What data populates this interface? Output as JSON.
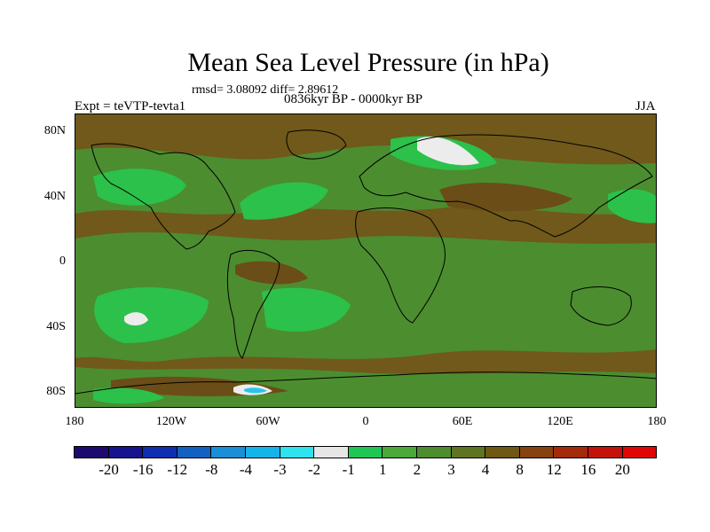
{
  "figure": {
    "title": "Mean Sea Level Pressure (in hPa)",
    "stats_line": "rmsd= 3.08092 diff= 2.89612",
    "experiment_label": "Expt = teVTP-tevta1",
    "period_label": "0836kyr BP - 0000kyr BP",
    "season_label": "JJA"
  },
  "axes": {
    "y_ticks": [
      "80N",
      "40N",
      "0",
      "40S",
      "80S"
    ],
    "x_ticks": [
      "180",
      "120W",
      "60W",
      "0",
      "60E",
      "120E",
      "180"
    ]
  },
  "colorbar": {
    "colors": [
      "#1c0a6e",
      "#16158f",
      "#0f2fb0",
      "#1260c2",
      "#1a8ed6",
      "#14b4e8",
      "#2ee2ee",
      "#e6e6e6",
      "#1fc653",
      "#4aa93a",
      "#4d8d2e",
      "#5e7420",
      "#6e5814",
      "#86430f",
      "#a42a0c",
      "#c4110a",
      "#e00606"
    ],
    "labels": [
      "-20",
      "-16",
      "-12",
      "-8",
      "-4",
      "-3",
      "-2",
      "-1",
      "1",
      "2",
      "3",
      "4",
      "8",
      "12",
      "16",
      "20"
    ]
  },
  "palette": {
    "background": "#70591a",
    "green_dark": "#4c8d30",
    "green_mid": "#3da742",
    "green_bright": "#2cc14a",
    "white": "#ececec",
    "cyan": "#29c4ec",
    "brown_dark": "#6b4d17"
  }
}
